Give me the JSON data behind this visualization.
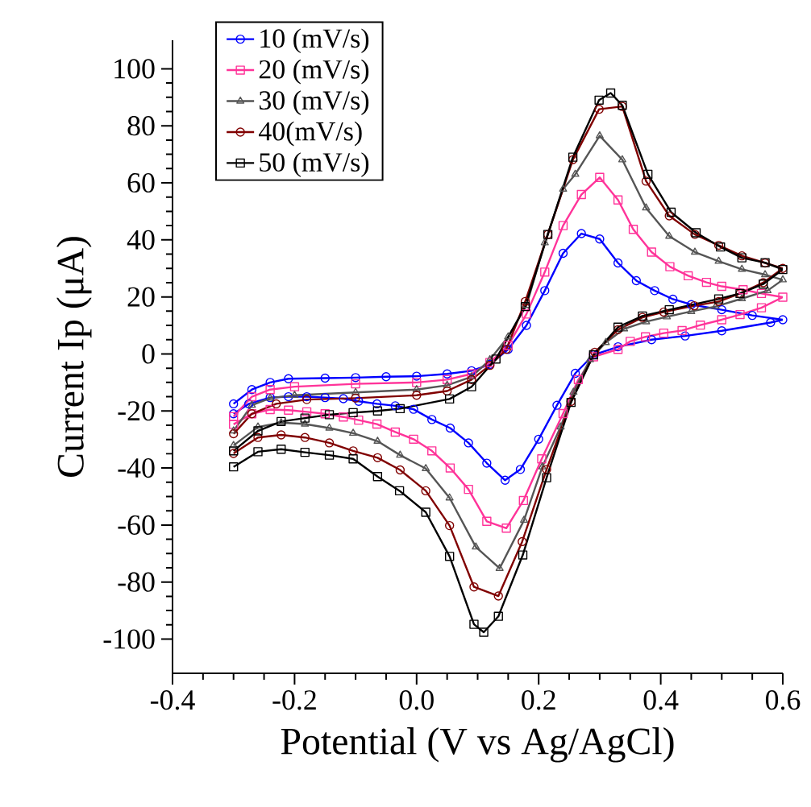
{
  "chart_data": {
    "type": "line",
    "xlabel": "Potential (V vs Ag/AgCl)",
    "ylabel": "Current Ip (μA)",
    "xlim": [
      -0.4,
      0.6
    ],
    "ylim": [
      -112,
      110
    ],
    "xticks": [
      -0.4,
      -0.2,
      {
        "value": 0,
        "label": "0.0"
      },
      0.2,
      0.4,
      0.6
    ],
    "yticks": [
      -100,
      -80,
      -60,
      -40,
      -20,
      0,
      20,
      40,
      60,
      80,
      100
    ],
    "legend": "top left",
    "grid": false,
    "line_style": "solid",
    "series": [
      {
        "name": "10 (mV/s)",
        "color": "#0000ff",
        "marker": "circle",
        "x": [
          -0.3,
          -0.27,
          -0.24,
          -0.21,
          -0.15,
          -0.1,
          -0.05,
          0,
          0.05,
          0.09,
          0.12,
          0.15,
          0.18,
          0.21,
          0.24,
          0.27,
          0.3,
          0.33,
          0.36,
          0.39,
          0.42,
          0.45,
          0.5,
          0.55,
          0.6,
          0.58,
          0.5,
          0.44,
          0.385,
          0.33,
          0.29,
          0.26,
          0.23,
          0.2,
          0.17,
          0.145,
          0.115,
          0.085,
          0.055,
          0.025,
          -0.005,
          -0.035,
          -0.065,
          -0.095,
          -0.12,
          -0.15,
          -0.18,
          -0.21,
          -0.24,
          -0.275,
          -0.3
        ],
        "values": [
          -17.5,
          -12.5,
          -10,
          -8.7,
          -8.5,
          -8.3,
          -8,
          -7.8,
          -7,
          -5.9,
          -3.7,
          1.6,
          10,
          22.2,
          35.3,
          42.2,
          40.3,
          31.9,
          25.7,
          22.2,
          19.2,
          17.3,
          15.5,
          13.5,
          12,
          11,
          8.1,
          6.3,
          5,
          2.5,
          -0.3,
          -6.8,
          -18,
          -29.9,
          -40.5,
          -44.3,
          -38.3,
          -31.2,
          -26,
          -23,
          -19.4,
          -18.2,
          -17.5,
          -16.6,
          -15.7,
          -15.3,
          -15,
          -15,
          -15.3,
          -17.5,
          -21
        ]
      },
      {
        "name": "20 (mV/s)",
        "color": "#ff3399",
        "marker": "square",
        "x": [
          -0.3,
          -0.27,
          -0.24,
          -0.2,
          -0.1,
          0,
          0.05,
          0.09,
          0.12,
          0.15,
          0.18,
          0.21,
          0.24,
          0.27,
          0.3,
          0.33,
          0.355,
          0.385,
          0.415,
          0.445,
          0.475,
          0.5,
          0.535,
          0.565,
          0.6,
          0.565,
          0.53,
          0.5,
          0.465,
          0.435,
          0.405,
          0.375,
          0.35,
          0.33,
          0.29,
          0.265,
          0.24,
          0.205,
          0.175,
          0.147,
          0.115,
          0.085,
          0.055,
          0.025,
          -0.005,
          -0.035,
          -0.065,
          -0.095,
          -0.12,
          -0.15,
          -0.18,
          -0.21,
          -0.24,
          -0.27,
          -0.3
        ],
        "values": [
          -22,
          -15,
          -12.5,
          -11.5,
          -10.5,
          -10,
          -9,
          -7,
          -3,
          3,
          14,
          28.7,
          45,
          55.9,
          61.9,
          54,
          43.7,
          35.7,
          30.6,
          27.4,
          25.1,
          23.7,
          22.5,
          21.2,
          19.9,
          16.2,
          13.8,
          12,
          10.1,
          8.2,
          7.3,
          6,
          4.4,
          1.6,
          -1,
          -9,
          -20.9,
          -36.8,
          -51.4,
          -61.1,
          -58.7,
          -47.5,
          -40,
          -34,
          -29.9,
          -27.4,
          -24.6,
          -23.2,
          -22.1,
          -21,
          -20.3,
          -19.7,
          -19.5,
          -21,
          -24.7
        ]
      },
      {
        "name": "30 (mV/s)",
        "color": "#555555",
        "marker": "triangle",
        "x": [
          -0.3,
          -0.27,
          -0.24,
          -0.2,
          -0.1,
          0,
          0.05,
          0.09,
          0.12,
          0.15,
          0.18,
          0.21,
          0.24,
          0.26,
          0.3,
          0.337,
          0.376,
          0.414,
          0.456,
          0.495,
          0.533,
          0.571,
          0.6,
          0.575,
          0.533,
          0.49,
          0.45,
          0.41,
          0.376,
          0.34,
          0.31,
          0.284,
          0.257,
          0.236,
          0.206,
          0.176,
          0.136,
          0.097,
          0.054,
          0.015,
          -0.027,
          -0.064,
          -0.104,
          -0.143,
          -0.183,
          -0.222,
          -0.26,
          -0.3
        ],
        "values": [
          -27,
          -18,
          -15.5,
          -14.5,
          -13.5,
          -12.5,
          -11,
          -8,
          -2,
          6,
          17,
          39,
          57.8,
          63,
          76.5,
          68.1,
          51.2,
          41.3,
          35.7,
          32.5,
          29.7,
          27.8,
          26,
          22.2,
          19.4,
          16.6,
          14.9,
          13,
          11.3,
          8.8,
          4,
          -2,
          -13.4,
          -25.6,
          -39.6,
          -58.3,
          -75.2,
          -67.7,
          -50.5,
          -40.2,
          -35.5,
          -30.6,
          -27.8,
          -26,
          -24.6,
          -24.1,
          -25.6,
          -32.1
        ]
      },
      {
        "name": "40(mV/s)",
        "color": "#800000",
        "marker": "circle",
        "x": [
          -0.3,
          -0.27,
          -0.23,
          -0.18,
          -0.1,
          0,
          0.05,
          0.09,
          0.12,
          0.147,
          0.178,
          0.215,
          0.256,
          0.299,
          0.337,
          0.376,
          0.414,
          0.456,
          0.495,
          0.533,
          0.571,
          0.6,
          0.568,
          0.53,
          0.495,
          0.455,
          0.405,
          0.37,
          0.33,
          0.292,
          0.253,
          0.213,
          0.173,
          0.134,
          0.094,
          0.054,
          0.015,
          -0.027,
          -0.064,
          -0.104,
          -0.143,
          -0.183,
          -0.222,
          -0.26,
          -0.3
        ],
        "values": [
          -28,
          -21,
          -17.5,
          -16,
          -15.5,
          -14.5,
          -13,
          -9,
          -4,
          1.6,
          18.4,
          41.9,
          68.1,
          85.8,
          86.8,
          60.6,
          48.4,
          41.9,
          38.1,
          34.4,
          31.9,
          30,
          25,
          21.2,
          18.4,
          16.9,
          14.7,
          12.8,
          8.5,
          0.6,
          -16.7,
          -40.5,
          -65.8,
          -84.9,
          -81.7,
          -60.2,
          -48,
          -40.7,
          -36.4,
          -34,
          -31.2,
          -29.3,
          -28.4,
          -29.3,
          -34.9
        ]
      },
      {
        "name": "50 (mV/s)",
        "color": "#000000",
        "marker": "square",
        "x": [
          -0.3,
          -0.26,
          -0.222,
          -0.183,
          -0.143,
          -0.104,
          -0.064,
          -0.027,
          0.054,
          0.09,
          0.13,
          0.178,
          0.215,
          0.256,
          0.299,
          0.318,
          0.337,
          0.379,
          0.417,
          0.458,
          0.498,
          0.533,
          0.571,
          0.6,
          0.568,
          0.53,
          0.495,
          0.414,
          0.37,
          0.33,
          0.29,
          0.253,
          0.213,
          0.174,
          0.134,
          0.11,
          0.094,
          0.054,
          0.015,
          -0.028,
          -0.064,
          -0.104,
          -0.143,
          -0.183,
          -0.222,
          -0.26,
          -0.3
        ],
        "values": [
          -34,
          -27,
          -23.7,
          -22.5,
          -21.3,
          -20.6,
          -20,
          -19.2,
          -15.8,
          -11.5,
          -1.8,
          16.6,
          41.9,
          69,
          89,
          91.5,
          87.2,
          63,
          49.7,
          42.5,
          37.5,
          33.7,
          32,
          29.6,
          24.5,
          21.2,
          19.3,
          15.5,
          13.3,
          9.4,
          -0.3,
          -17,
          -43.4,
          -70.5,
          -92,
          -97.6,
          -94.8,
          -71,
          -55.5,
          -48,
          -43,
          -36.8,
          -35.5,
          -34.5,
          -33.4,
          -34.3,
          -39.6
        ]
      }
    ]
  }
}
